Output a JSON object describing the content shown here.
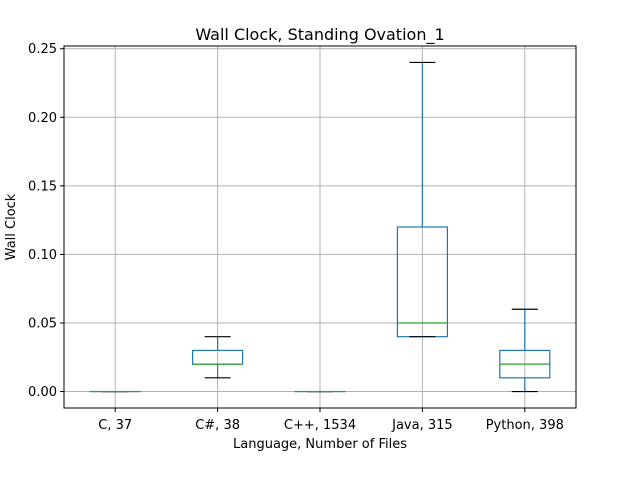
{
  "chart_data": {
    "type": "box",
    "title": "Wall Clock, Standing Ovation_1",
    "xlabel": "Language, Number of Files",
    "ylabel": "Wall Clock",
    "ylim": [
      -0.012,
      0.252
    ],
    "yticks": [
      0.0,
      0.05,
      0.1,
      0.15,
      0.2,
      0.25
    ],
    "ytick_labels": [
      "0.00",
      "0.05",
      "0.10",
      "0.15",
      "0.20",
      "0.25"
    ],
    "grid": true,
    "categories": [
      "C, 37",
      "C#, 38",
      "C++, 1534",
      "Java, 315",
      "Python, 398"
    ],
    "boxes": [
      {
        "whisker_low": 0.0,
        "q1": 0.0,
        "median": 0.0,
        "q3": 0.0,
        "whisker_high": 0.0
      },
      {
        "whisker_low": 0.01,
        "q1": 0.02,
        "median": 0.02,
        "q3": 0.03,
        "whisker_high": 0.04
      },
      {
        "whisker_low": 0.0,
        "q1": 0.0,
        "median": 0.0,
        "q3": 0.0,
        "whisker_high": 0.0
      },
      {
        "whisker_low": 0.04,
        "q1": 0.04,
        "median": 0.05,
        "q3": 0.12,
        "whisker_high": 0.24
      },
      {
        "whisker_low": 0.0,
        "q1": 0.01,
        "median": 0.02,
        "q3": 0.03,
        "whisker_high": 0.06
      }
    ],
    "colors": {
      "box": "#1f77b4",
      "median": "#2ca02c",
      "cap": "#000000",
      "grid": "#b0b0b0",
      "axes": "#000000"
    }
  }
}
